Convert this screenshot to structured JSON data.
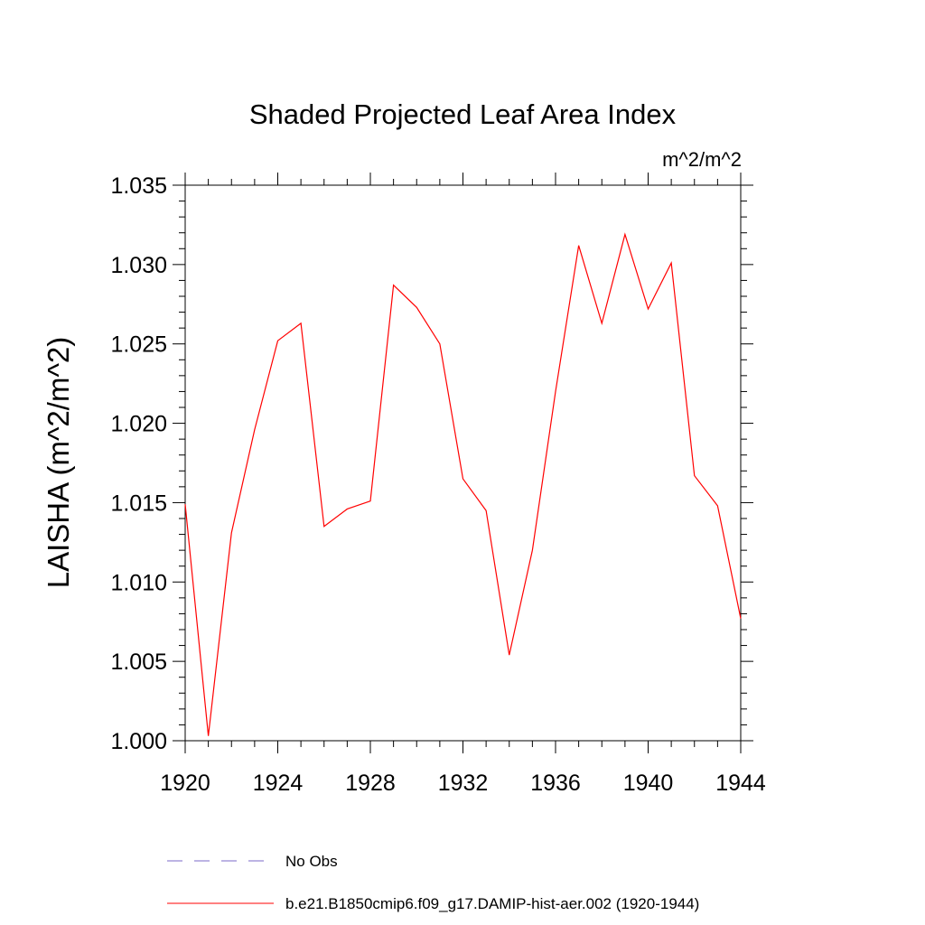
{
  "chart_data": {
    "type": "line",
    "title": "Shaded Projected Leaf Area Index",
    "units_label": "m^2/m^2",
    "ylabel": "LAISHA  (m^2/m^2)",
    "xlabel": "",
    "xlim": [
      1920,
      1944
    ],
    "ylim": [
      1.0,
      1.035
    ],
    "xticks": [
      1920,
      1924,
      1928,
      1932,
      1936,
      1940,
      1944
    ],
    "xtick_labels": [
      "1920",
      "1924",
      "1928",
      "1932",
      "1936",
      "1940",
      "1944"
    ],
    "yticks": [
      1.0,
      1.005,
      1.01,
      1.015,
      1.02,
      1.025,
      1.03,
      1.035
    ],
    "ytick_labels": [
      "1.000",
      "1.005",
      "1.010",
      "1.015",
      "1.020",
      "1.025",
      "1.030",
      "1.035"
    ],
    "grid": false,
    "legend_placement": "bottom",
    "series": [
      {
        "name": "b.e21.B1850cmip6.f09_g17.DAMIP-hist-aer.002 (1920-1944)",
        "color": "#ff0000",
        "style": "solid",
        "x": [
          1920,
          1921,
          1922,
          1923,
          1924,
          1925,
          1926,
          1927,
          1928,
          1929,
          1930,
          1931,
          1932,
          1933,
          1934,
          1935,
          1936,
          1937,
          1938,
          1939,
          1940,
          1941,
          1942,
          1943,
          1944
        ],
        "y": [
          1.0149,
          1.0003,
          1.0131,
          1.0196,
          1.0252,
          1.0263,
          1.0135,
          1.0146,
          1.0151,
          1.0287,
          1.0273,
          1.025,
          1.0165,
          1.0145,
          1.0054,
          1.012,
          1.022,
          1.0312,
          1.0263,
          1.0319,
          1.0272,
          1.0301,
          1.0167,
          1.0148,
          1.0077
        ]
      }
    ],
    "legend": [
      {
        "label": "No Obs",
        "color": "#7b68c8",
        "style": "dashed"
      },
      {
        "label": "b.e21.B1850cmip6.f09_g17.DAMIP-hist-aer.002 (1920-1944)",
        "color": "#ff0000",
        "style": "solid"
      }
    ]
  }
}
